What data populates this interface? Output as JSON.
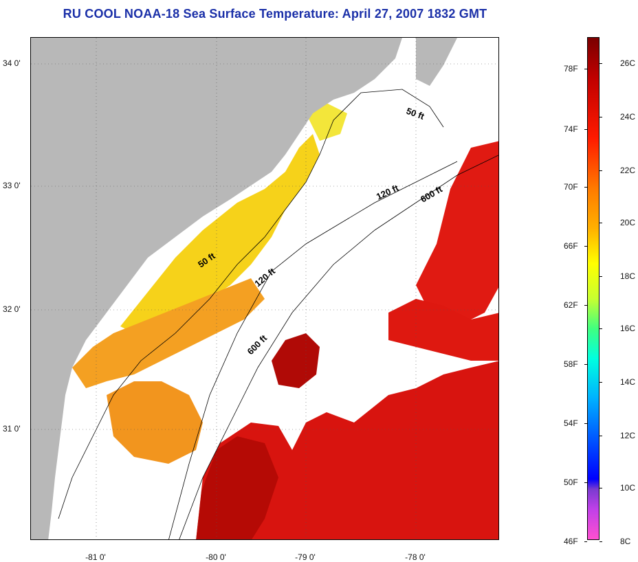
{
  "title": "RU COOL  NOAA-18  Sea Surface Temperature:  April 27, 2007 1832 GMT",
  "axes": {
    "x_ticks": [
      "-81 0'",
      "-80 0'",
      "-79 0'",
      "-78 0'"
    ],
    "y_ticks": [
      "34 0'",
      "33 0'",
      "32 0'",
      "31 0'"
    ]
  },
  "contours": {
    "labels": [
      "50 ft",
      "120 ft",
      "600 ft",
      "50 ft",
      "120 ft",
      "600 ft"
    ]
  },
  "colorbar": {
    "fahrenheit": [
      "78F",
      "74F",
      "70F",
      "66F",
      "62F",
      "58F",
      "54F",
      "50F",
      "46F"
    ],
    "celsius": [
      "26C",
      "24C",
      "22C",
      "20C",
      "18C",
      "16C",
      "14C",
      "12C",
      "10C",
      "8C"
    ]
  },
  "colors": {
    "title": "#1a2fa8",
    "land": "#b8b8b8",
    "warm": "#e01010",
    "hot": "#b00000",
    "orange": "#f39a1e",
    "yellow": "#f6d21a",
    "cloud": "#ffffff"
  }
}
